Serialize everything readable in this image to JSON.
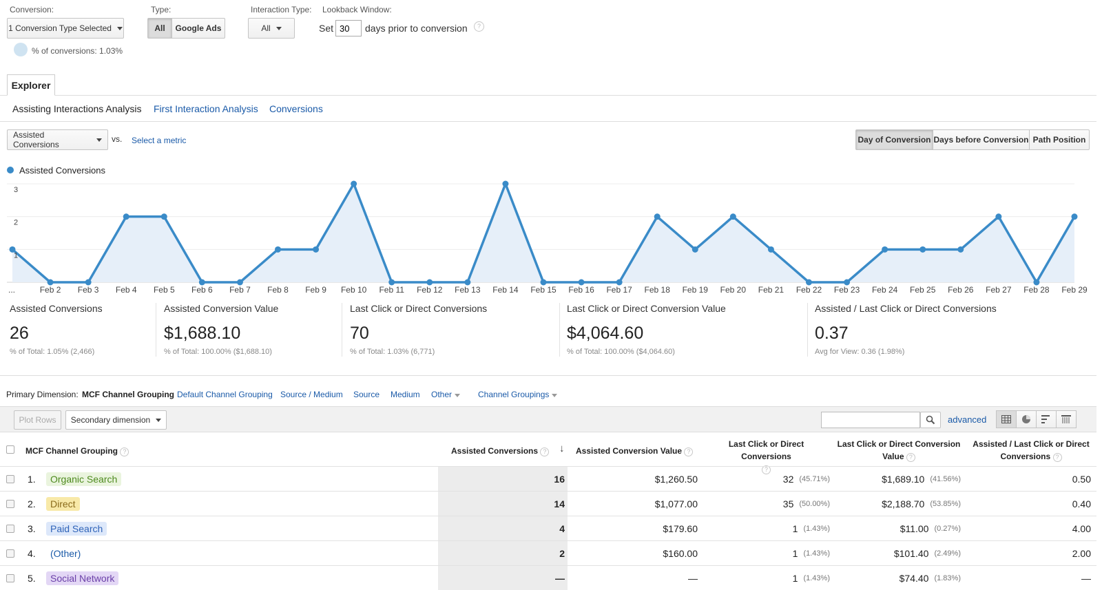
{
  "filters": {
    "conversion_label": "Conversion:",
    "conversion_value": "1 Conversion Type Selected",
    "conversion_pct": "% of conversions: 1.03%",
    "type_label": "Type:",
    "type_options": [
      "All",
      "Google Ads"
    ],
    "interaction_label": "Interaction Type:",
    "interaction_value": "All",
    "lookback_label": "Lookback Window:",
    "lookback_prefix": "Set",
    "lookback_days": "30",
    "lookback_suffix": "days prior to conversion"
  },
  "explorer_tab": "Explorer",
  "subtabs": [
    "Assisting Interactions Analysis",
    "First Interaction Analysis",
    "Conversions"
  ],
  "metric_select": "Assisted Conversions",
  "vs_label": "vs.",
  "select_metric": "Select a metric",
  "view_toggles": [
    "Day of Conversion",
    "Days before Conversion",
    "Path Position"
  ],
  "chart_data": {
    "type": "area",
    "legend": "Assisted Conversions",
    "x": [
      "...",
      "Feb 2",
      "Feb 3",
      "Feb 4",
      "Feb 5",
      "Feb 6",
      "Feb 7",
      "Feb 8",
      "Feb 9",
      "Feb 10",
      "Feb 11",
      "Feb 12",
      "Feb 13",
      "Feb 14",
      "Feb 15",
      "Feb 16",
      "Feb 17",
      "Feb 18",
      "Feb 19",
      "Feb 20",
      "Feb 21",
      "Feb 22",
      "Feb 23",
      "Feb 24",
      "Feb 25",
      "Feb 26",
      "Feb 27",
      "Feb 28",
      "Feb 29"
    ],
    "values": [
      1,
      0,
      0,
      2,
      2,
      0,
      0,
      1,
      1,
      3,
      0,
      0,
      0,
      3,
      0,
      0,
      0,
      2,
      1,
      2,
      1,
      0,
      0,
      1,
      1,
      1,
      2,
      0,
      2
    ],
    "y_ticks": [
      "1",
      "2",
      "3"
    ],
    "ylim": [
      0,
      3
    ],
    "color": "#3a8bc8",
    "fill": "#e6eff9"
  },
  "scorecards": [
    {
      "title": "Assisted Conversions",
      "value": "26",
      "sub": "% of Total: 1.05% (2,466)"
    },
    {
      "title": "Assisted Conversion Value",
      "value": "$1,688.10",
      "sub": "% of Total: 100.00% ($1,688.10)"
    },
    {
      "title": "Last Click or Direct Conversions",
      "value": "70",
      "sub": "% of Total: 1.03% (6,771)"
    },
    {
      "title": "Last Click or Direct Conversion Value",
      "value": "$4,064.60",
      "sub": "% of Total: 100.00% ($4,064.60)"
    },
    {
      "title": "Assisted / Last Click or Direct Conversions",
      "value": "0.37",
      "sub": "Avg for View: 0.36 (1.98%)"
    }
  ],
  "dimensions": {
    "label": "Primary Dimension:",
    "active": "MCF Channel Grouping",
    "links": [
      "Default Channel Grouping",
      "Source / Medium",
      "Source",
      "Medium"
    ],
    "other": "Other",
    "groupings": "Channel Groupings"
  },
  "toolbar": {
    "plot_rows": "Plot Rows",
    "secondary": "Secondary dimension",
    "advanced": "advanced",
    "search_value": ""
  },
  "table": {
    "headers": {
      "dim": "MCF Channel Grouping",
      "assisted": "Assisted Conversions",
      "assisted_value": "Assisted Conversion Value",
      "last_click_1": "Last Click or Direct Conversions",
      "last_click_value_1": "Last Click or Direct Conversion",
      "last_click_value_2": "Value",
      "ratio_1": "Assisted / Last Click or Direct",
      "ratio_2": "Conversions"
    },
    "rows": [
      {
        "idx": "1.",
        "name": "Organic Search",
        "bg": "#eaf4de",
        "fg": "#4d8a1e",
        "assisted": "16",
        "assisted_value": "$1,260.50",
        "lc": "32",
        "lc_pct": "(45.71%)",
        "lcv": "$1,689.10",
        "lcv_pct": "(41.56%)",
        "ratio": "0.50"
      },
      {
        "idx": "2.",
        "name": "Direct",
        "bg": "#f8e9a8",
        "fg": "#8a6a1a",
        "assisted": "14",
        "assisted_value": "$1,077.00",
        "lc": "35",
        "lc_pct": "(50.00%)",
        "lcv": "$2,188.70",
        "lcv_pct": "(53.85%)",
        "ratio": "0.40"
      },
      {
        "idx": "3.",
        "name": "Paid Search",
        "bg": "#dde8fa",
        "fg": "#2f63b8",
        "assisted": "4",
        "assisted_value": "$179.60",
        "lc": "1",
        "lc_pct": "(1.43%)",
        "lcv": "$11.00",
        "lcv_pct": "(0.27%)",
        "ratio": "4.00"
      },
      {
        "idx": "4.",
        "name": "(Other)",
        "bg": "transparent",
        "fg": "#1a5aa8",
        "assisted": "2",
        "assisted_value": "$160.00",
        "lc": "1",
        "lc_pct": "(1.43%)",
        "lcv": "$101.40",
        "lcv_pct": "(2.49%)",
        "ratio": "2.00"
      },
      {
        "idx": "5.",
        "name": "Social Network",
        "bg": "#e3d7f5",
        "fg": "#6a3fa8",
        "assisted": "—",
        "assisted_value": "—",
        "lc": "1",
        "lc_pct": "(1.43%)",
        "lcv": "$74.40",
        "lcv_pct": "(1.83%)",
        "ratio": "—"
      }
    ]
  }
}
